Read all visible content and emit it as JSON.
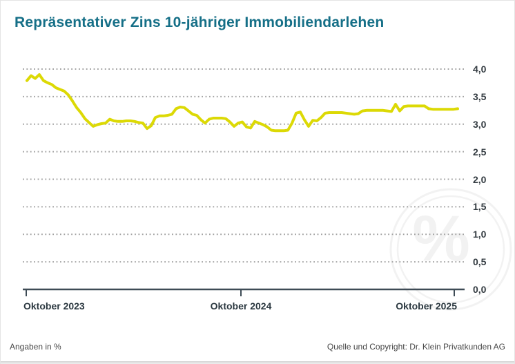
{
  "title": "Repräsentativer Zins 10-jähriger Immobiliendarlehen",
  "watermark": "%",
  "footer": {
    "left": "Angaben in %",
    "right": "Quelle und Copyright: Dr. Klein Privatkunden AG"
  },
  "colors": {
    "title": "#156f87",
    "line": "#dcd905",
    "grid": "#a2a2a2",
    "axis": "#3e4b55",
    "tick_text": "#333b41",
    "footer_text": "#474747",
    "watermark": "#f2f2f2",
    "background": "#ffffff"
  },
  "chart_data": {
    "type": "line",
    "title": "Repräsentativer Zins 10-jähriger Immobiliendarlehen",
    "unit": "%",
    "xlabel": "",
    "ylabel": "",
    "ylim": [
      0,
      4.0
    ],
    "y_step": 0.5,
    "grid": "dotted-horizontal",
    "legend": "none",
    "value_axis_side": "right",
    "x_tick_labels": [
      "Oktober 2023",
      "Oktober 2024",
      "Oktober 2025"
    ],
    "y_tick_labels": [
      "4,0",
      "3,5",
      "3,0",
      "2,5",
      "2,0",
      "1,5",
      "1,0",
      "0,5",
      "0,0"
    ],
    "series": [
      {
        "name": "Repräsentativer Zins 10-jähriger Immobiliendarlehen",
        "cadence": "weekly, Oktober 2023 bis kurz nach Oktober 2025",
        "values": [
          3.79,
          3.88,
          3.83,
          3.9,
          3.79,
          3.75,
          3.72,
          3.66,
          3.63,
          3.6,
          3.53,
          3.42,
          3.3,
          3.21,
          3.1,
          3.03,
          2.96,
          2.99,
          3.01,
          3.02,
          3.09,
          3.06,
          3.05,
          3.05,
          3.06,
          3.06,
          3.05,
          3.03,
          3.02,
          2.92,
          2.97,
          3.12,
          3.15,
          3.15,
          3.16,
          3.18,
          3.28,
          3.31,
          3.3,
          3.24,
          3.18,
          3.16,
          3.08,
          3.02,
          3.09,
          3.11,
          3.11,
          3.11,
          3.1,
          3.04,
          2.96,
          3.02,
          3.04,
          2.95,
          2.93,
          3.05,
          3.02,
          2.99,
          2.95,
          2.89,
          2.88,
          2.88,
          2.88,
          2.89,
          3.02,
          3.2,
          3.22,
          3.08,
          2.96,
          3.07,
          3.06,
          3.12,
          3.2,
          3.21,
          3.21,
          3.21,
          3.21,
          3.2,
          3.19,
          3.18,
          3.19,
          3.24,
          3.25,
          3.25,
          3.25,
          3.25,
          3.25,
          3.24,
          3.23,
          3.36,
          3.24,
          3.32,
          3.33,
          3.33,
          3.33,
          3.33,
          3.33,
          3.28,
          3.27,
          3.27,
          3.27,
          3.27,
          3.27,
          3.27,
          3.28
        ]
      }
    ]
  }
}
